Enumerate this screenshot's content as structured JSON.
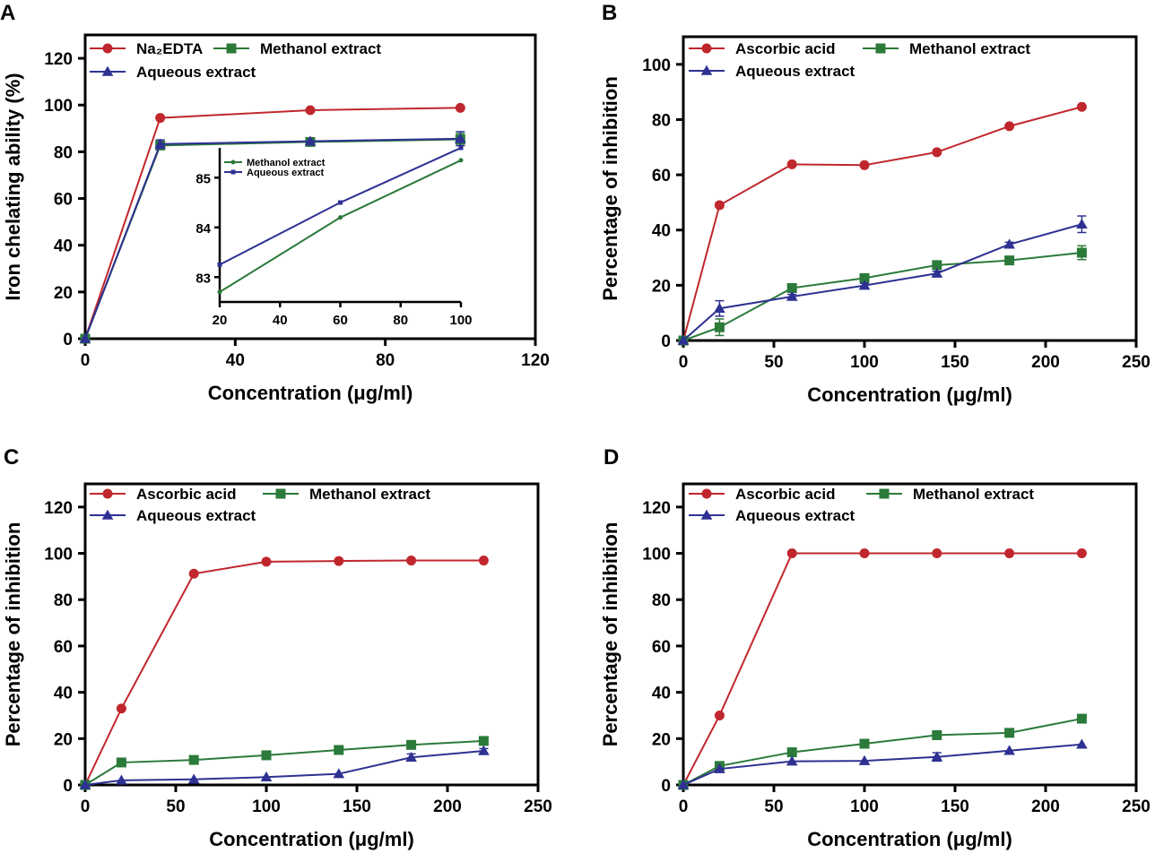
{
  "chart_data": [
    {
      "panel": "A",
      "type": "line",
      "x": [
        0,
        20,
        60,
        100
      ],
      "series": [
        {
          "name": "Na₂EDTA",
          "color": "#c0272d",
          "marker": "circle",
          "values": [
            0,
            94.5,
            97.8,
            98.8
          ],
          "errors": [
            0,
            0.5,
            0.5,
            0.5
          ]
        },
        {
          "name": "Methanol extract",
          "color": "#2b7a3a",
          "marker": "square",
          "values": [
            0,
            82.7,
            84.2,
            85.3
          ],
          "errors": [
            0,
            0.8,
            0.6,
            2.5
          ]
        },
        {
          "name": "Aqueous extract",
          "color": "#2e3192",
          "marker": "triangle",
          "values": [
            0,
            83.3,
            84.5,
            85.6
          ],
          "errors": [
            0,
            1.8,
            0.6,
            3.0
          ]
        }
      ],
      "xlabel": "Concentration (μg/ml)",
      "ylabel": "Iron chelating ability (%)",
      "xlim": [
        0,
        120
      ],
      "ylim": [
        0,
        130
      ],
      "xticks": [
        0,
        40,
        80,
        120
      ],
      "yticks": [
        0,
        20,
        40,
        60,
        80,
        100,
        120
      ],
      "inset": {
        "x": [
          20,
          60,
          100
        ],
        "series": [
          {
            "name": "Methanol extract",
            "color": "#2b7a3a",
            "values": [
              82.7,
              84.2,
              85.35
            ]
          },
          {
            "name": "Aqueous extract",
            "color": "#2e3192",
            "values": [
              83.25,
              84.5,
              85.6
            ]
          }
        ],
        "xlim": [
          20,
          100
        ],
        "ylim": [
          82.5,
          85.6
        ],
        "xticks": [
          20,
          40,
          60,
          80,
          100
        ],
        "yticks": [
          83,
          84,
          85
        ]
      }
    },
    {
      "panel": "B",
      "type": "line",
      "x": [
        0,
        20,
        60,
        100,
        140,
        180,
        220
      ],
      "series": [
        {
          "name": "Ascorbic acid",
          "color": "#c0272d",
          "marker": "circle",
          "values": [
            0,
            49,
            63.8,
            63.5,
            68.2,
            77.6,
            84.6
          ],
          "errors": [
            0,
            0.8,
            0.5,
            0.5,
            0.5,
            0.5,
            0.5
          ]
        },
        {
          "name": "Methanol extract",
          "color": "#2b7a3a",
          "marker": "square",
          "values": [
            0,
            4.8,
            19,
            22.6,
            27.3,
            29,
            31.8
          ],
          "errors": [
            0,
            3.0,
            0.8,
            0.8,
            0.8,
            0.8,
            2.5
          ]
        },
        {
          "name": "Aqueous extract",
          "color": "#2e3192",
          "marker": "triangle",
          "values": [
            0,
            11.6,
            15.9,
            19.9,
            24.3,
            34.8,
            42.1
          ],
          "errors": [
            0,
            2.8,
            0.8,
            0.8,
            0.8,
            0.8,
            3.0
          ]
        }
      ],
      "xlabel": "Concentration (μg/ml)",
      "ylabel": "Percentage of inhibition",
      "xlim": [
        0,
        250
      ],
      "ylim": [
        0,
        110
      ],
      "xticks": [
        0,
        50,
        100,
        150,
        200,
        250
      ],
      "yticks": [
        0,
        20,
        40,
        60,
        80,
        100
      ]
    },
    {
      "panel": "C",
      "type": "line",
      "x": [
        0,
        20,
        60,
        100,
        140,
        180,
        220
      ],
      "series": [
        {
          "name": "Ascorbic acid",
          "color": "#c0272d",
          "marker": "circle",
          "values": [
            0,
            33,
            91.2,
            96.4,
            96.7,
            96.9,
            96.9
          ],
          "errors": [
            0,
            0.5,
            0.5,
            0.5,
            0.5,
            0.5,
            0.5
          ]
        },
        {
          "name": "Methanol extract",
          "color": "#2b7a3a",
          "marker": "square",
          "values": [
            0,
            9.7,
            10.8,
            12.8,
            15.1,
            17.3,
            19.0
          ],
          "errors": [
            0,
            0.5,
            0.5,
            0.5,
            0.5,
            1.0,
            0.8
          ]
        },
        {
          "name": "Aqueous extract",
          "color": "#2e3192",
          "marker": "triangle",
          "values": [
            0,
            2.0,
            2.4,
            3.4,
            4.8,
            11.9,
            14.7
          ],
          "errors": [
            0,
            0.5,
            0.5,
            0.5,
            0.5,
            1.5,
            1.0
          ]
        }
      ],
      "xlabel": "Concentration (μg/ml)",
      "ylabel": "Percentage of inhibition",
      "xlim": [
        0,
        250
      ],
      "ylim": [
        0,
        130
      ],
      "xticks": [
        0,
        50,
        100,
        150,
        200,
        250
      ],
      "yticks": [
        0,
        20,
        40,
        60,
        80,
        100,
        120
      ]
    },
    {
      "panel": "D",
      "type": "line",
      "x": [
        0,
        20,
        60,
        100,
        140,
        180,
        220
      ],
      "series": [
        {
          "name": "Ascorbic acid",
          "color": "#c0272d",
          "marker": "circle",
          "values": [
            0,
            30,
            100,
            100,
            100,
            100,
            100
          ],
          "errors": [
            0,
            0.5,
            0.5,
            0.5,
            0.5,
            0.5,
            0.5
          ]
        },
        {
          "name": "Methanol extract",
          "color": "#2b7a3a",
          "marker": "square",
          "values": [
            0,
            8.2,
            14.1,
            17.8,
            21.5,
            22.5,
            28.6
          ],
          "errors": [
            0,
            0.5,
            0.5,
            0.5,
            0.5,
            0.5,
            0.8
          ]
        },
        {
          "name": "Aqueous extract",
          "color": "#2e3192",
          "marker": "triangle",
          "values": [
            0,
            6.9,
            10.2,
            10.4,
            12.1,
            14.8,
            17.5
          ],
          "errors": [
            0,
            0.5,
            0.5,
            0.5,
            1.8,
            0.5,
            0.5
          ]
        }
      ],
      "xlabel": "Concentration (μg/ml)",
      "ylabel": "Percentage of inhibition",
      "xlim": [
        0,
        250
      ],
      "ylim": [
        0,
        130
      ],
      "xticks": [
        0,
        50,
        100,
        150,
        200,
        250
      ],
      "yticks": [
        0,
        20,
        40,
        60,
        80,
        100,
        120
      ]
    }
  ]
}
